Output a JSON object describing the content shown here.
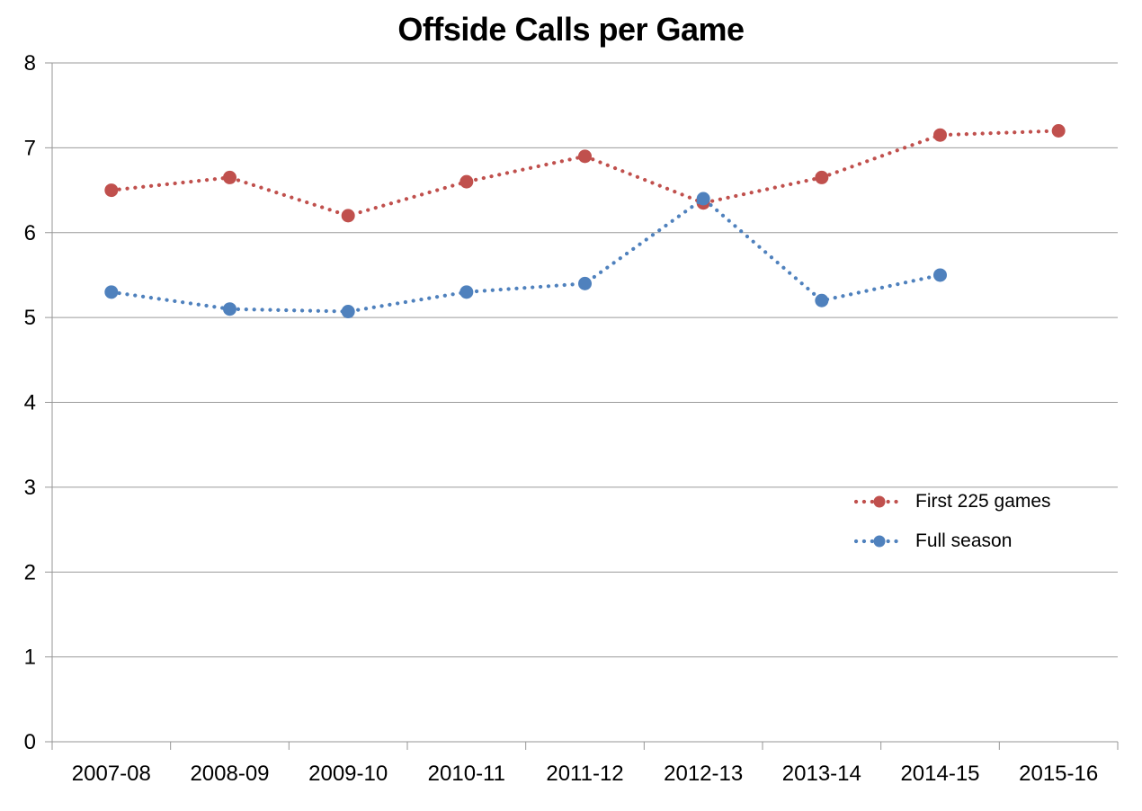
{
  "chart_data": {
    "type": "line",
    "title": "Offside Calls per Game",
    "categories": [
      "2007-08",
      "2008-09",
      "2009-10",
      "2010-11",
      "2011-12",
      "2012-13",
      "2013-14",
      "2014-15",
      "2015-16"
    ],
    "series": [
      {
        "name": "First 225 games",
        "color": "#C0504D",
        "values": [
          6.5,
          6.65,
          6.2,
          6.6,
          6.9,
          6.35,
          6.65,
          7.15,
          7.2
        ]
      },
      {
        "name": "Full season",
        "color": "#4F81BD",
        "values": [
          5.3,
          5.1,
          5.07,
          5.3,
          5.4,
          6.4,
          5.2,
          5.5,
          null
        ]
      }
    ],
    "ylim": [
      0,
      8
    ],
    "yticks": [
      0,
      1,
      2,
      3,
      4,
      5,
      6,
      7,
      8
    ],
    "xlabel": "",
    "ylabel": "",
    "grid": true,
    "line_style": "dotted",
    "marker": "circle",
    "legend_position": "right-middle",
    "axis_color": "#969696",
    "grid_color": "#9B9B9B",
    "label_color": "#000000"
  }
}
